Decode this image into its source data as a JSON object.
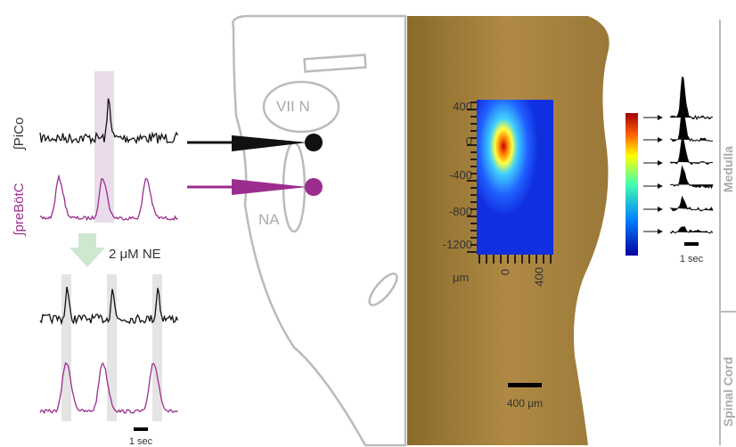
{
  "left": {
    "pico_label": "∫PiCo",
    "prebotc_label": "∫preBötC",
    "treatment": "2 μM NE",
    "scale_bar": "1 sec"
  },
  "brainstem": {
    "nucleus_1": "VII N",
    "nucleus_2": "NA"
  },
  "heatmap": {
    "y_ticks": [
      "400",
      "0",
      "-400",
      "-800",
      "-1200"
    ],
    "x_unit": "μm",
    "x_ticks": [
      "0",
      "400"
    ]
  },
  "tissue": {
    "scale_bar": "400 μm"
  },
  "traces": {
    "scale_bar": "1 sec"
  },
  "regions": [
    "Medulla",
    "Spinal Cord"
  ]
}
